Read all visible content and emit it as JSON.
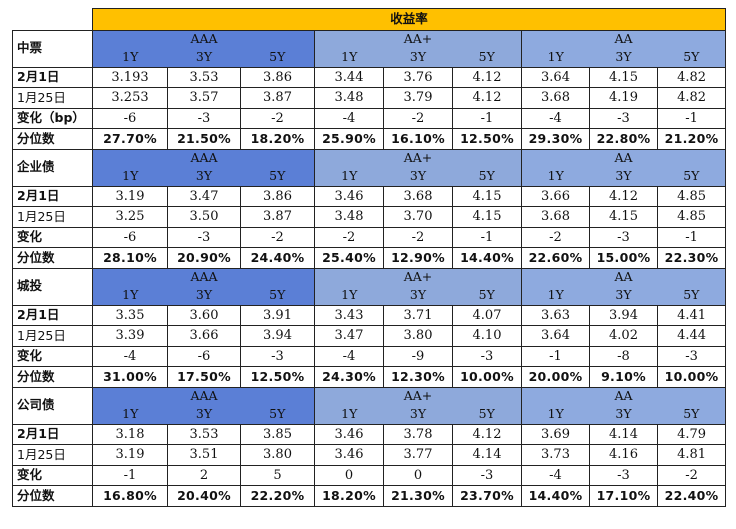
{
  "title": "收益率",
  "grades": [
    "AAA",
    "AA+",
    "AA"
  ],
  "tenors": [
    "1Y",
    "3Y",
    "5Y"
  ],
  "colors": {
    "title": "#ffc000",
    "aaa": "#5b7fd6",
    "aa_plus": "#8ea9db",
    "aa": "#8eaadf"
  },
  "sections": [
    {
      "name": "中票",
      "rows": [
        {
          "label": "2月1日",
          "bold": true,
          "values": [
            "3.193",
            "3.53",
            "3.86",
            "3.44",
            "3.76",
            "4.12",
            "3.64",
            "4.15",
            "4.82"
          ]
        },
        {
          "label": "1月25日",
          "bold": false,
          "values": [
            "3.253",
            "3.57",
            "3.87",
            "3.48",
            "3.79",
            "4.12",
            "3.68",
            "4.19",
            "4.82"
          ]
        },
        {
          "label": "变化（bp）",
          "bold": true,
          "values": [
            "-6",
            "-3",
            "-2",
            "-4",
            "-2",
            "-1",
            "-4",
            "-3",
            "-1"
          ]
        },
        {
          "label": "分位数",
          "bold": true,
          "pct": true,
          "values": [
            "27.70%",
            "21.50%",
            "18.20%",
            "25.90%",
            "16.10%",
            "12.50%",
            "29.30%",
            "22.80%",
            "21.20%"
          ]
        }
      ]
    },
    {
      "name": "企业债",
      "rows": [
        {
          "label": "2月1日",
          "bold": true,
          "values": [
            "3.19",
            "3.47",
            "3.86",
            "3.46",
            "3.68",
            "4.15",
            "3.66",
            "4.12",
            "4.85"
          ]
        },
        {
          "label": "1月25日",
          "bold": false,
          "values": [
            "3.25",
            "3.50",
            "3.87",
            "3.48",
            "3.70",
            "4.15",
            "3.68",
            "4.15",
            "4.85"
          ]
        },
        {
          "label": "变化",
          "bold": true,
          "values": [
            "-6",
            "-3",
            "-2",
            "-2",
            "-2",
            "-1",
            "-2",
            "-3",
            "-1"
          ]
        },
        {
          "label": "分位数",
          "bold": true,
          "pct": true,
          "values": [
            "28.10%",
            "20.90%",
            "24.40%",
            "25.40%",
            "12.90%",
            "14.40%",
            "22.60%",
            "15.00%",
            "22.30%"
          ]
        }
      ]
    },
    {
      "name": "城投",
      "rows": [
        {
          "label": "2月1日",
          "bold": true,
          "values": [
            "3.35",
            "3.60",
            "3.91",
            "3.43",
            "3.71",
            "4.07",
            "3.63",
            "3.94",
            "4.41"
          ]
        },
        {
          "label": "1月25日",
          "bold": false,
          "values": [
            "3.39",
            "3.66",
            "3.94",
            "3.47",
            "3.80",
            "4.10",
            "3.64",
            "4.02",
            "4.44"
          ]
        },
        {
          "label": "变化",
          "bold": true,
          "values": [
            "-4",
            "-6",
            "-3",
            "-4",
            "-9",
            "-3",
            "-1",
            "-8",
            "-3"
          ]
        },
        {
          "label": "分位数",
          "bold": true,
          "pct": true,
          "values": [
            "31.00%",
            "17.50%",
            "12.50%",
            "24.30%",
            "12.30%",
            "10.00%",
            "20.00%",
            "9.10%",
            "10.00%"
          ]
        }
      ]
    },
    {
      "name": "公司债",
      "rows": [
        {
          "label": "2月1日",
          "bold": true,
          "values": [
            "3.18",
            "3.53",
            "3.85",
            "3.46",
            "3.78",
            "4.12",
            "3.69",
            "4.14",
            "4.79"
          ]
        },
        {
          "label": "1月25日",
          "bold": false,
          "values": [
            "3.19",
            "3.51",
            "3.80",
            "3.46",
            "3.77",
            "4.14",
            "3.73",
            "4.16",
            "4.81"
          ]
        },
        {
          "label": "变化",
          "bold": true,
          "values": [
            "-1",
            "2",
            "5",
            "0",
            "0",
            "-3",
            "-4",
            "-3",
            "-2"
          ]
        },
        {
          "label": "分位数",
          "bold": true,
          "pct": true,
          "values": [
            "16.80%",
            "20.40%",
            "22.20%",
            "18.20%",
            "21.30%",
            "23.70%",
            "14.40%",
            "17.10%",
            "22.40%"
          ]
        }
      ]
    }
  ]
}
